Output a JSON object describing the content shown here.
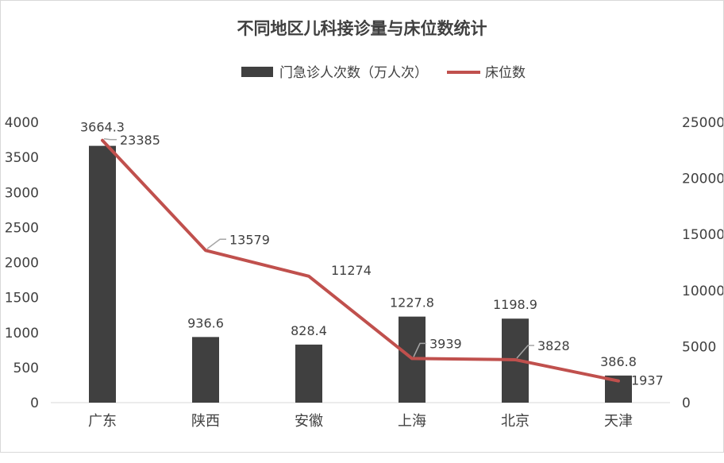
{
  "chart_data": {
    "type": "bar+line",
    "title": "不同地区儿科接诊量与床位数统计",
    "categories": [
      "广东",
      "陕西",
      "安徽",
      "上海",
      "北京",
      "天津"
    ],
    "series": [
      {
        "name": "门急诊人次数（万人次）",
        "type": "bar",
        "axis": "left",
        "values": [
          3664.3,
          936.6,
          828.4,
          1227.8,
          1198.9,
          386.8
        ],
        "labels": [
          "3664.3",
          "936.6",
          "828.4",
          "1227.8",
          "1198.9",
          "386.8"
        ]
      },
      {
        "name": "床位数",
        "type": "line",
        "axis": "right",
        "values": [
          23385,
          13579,
          11274,
          3939,
          3828,
          1937
        ],
        "labels": [
          "23385",
          "13579",
          "11274",
          "3939",
          "3828",
          "1937"
        ]
      }
    ],
    "y_left": {
      "min": 0,
      "max": 4000,
      "ticks": [
        "0",
        "500",
        "1000",
        "1500",
        "2000",
        "2500",
        "3000",
        "3500",
        "4000"
      ]
    },
    "y_right": {
      "min": 0,
      "max": 25000,
      "ticks": [
        "0",
        "5000",
        "10000",
        "15000",
        "20000",
        "25000"
      ]
    },
    "legend_position": "top-center",
    "grid": false,
    "colors": {
      "bar": "#404040",
      "line": "#c0504d",
      "text": "#404040",
      "axis": "#d9d9d9",
      "leader": "#a6a6a6"
    }
  }
}
